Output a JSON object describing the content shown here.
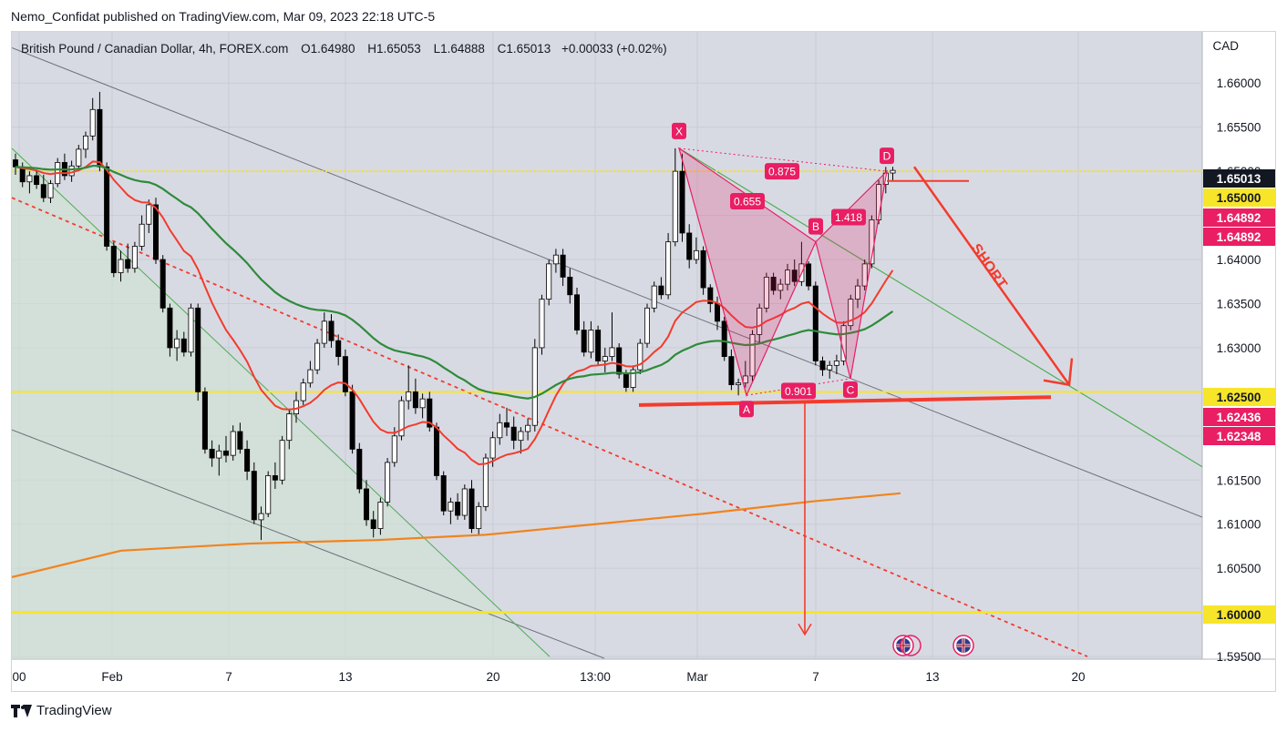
{
  "publisher": "Nemo_Confidat published on TradingView.com, Mar 09, 2023 22:18 UTC-5",
  "footer_brand": "TradingView",
  "symbol": {
    "name": "British Pound / Canadian Dollar, 4h, FOREX.com",
    "open_label": "O",
    "open": "1.64980",
    "high_label": "H",
    "high": "1.65053",
    "low_label": "L",
    "low": "1.64888",
    "close_label": "C",
    "close": "1.65013",
    "change": "+0.00033 (+0.02%)"
  },
  "currency": "CAD",
  "colors": {
    "up": "#ffffff",
    "down": "#000000",
    "ema_red": "#f23c2e",
    "ema_green": "#2e8b3a",
    "ema_orange": "#f0841e",
    "pattern": "#e91e63",
    "yellow": "#f7e52a",
    "trend_green": "#4caf50",
    "trend_gray": "#6b6f78",
    "plot_bg": "#d8dae3",
    "label_dark": "#131722"
  },
  "chart_data": {
    "type": "candlestick",
    "interval": "4h",
    "ylim": [
      1.5947,
      1.6658
    ],
    "y_ticks": [
      "1.59500",
      "1.60000",
      "1.60500",
      "1.61000",
      "1.61500",
      "1.62000",
      "1.62500",
      "1.63000",
      "1.63500",
      "1.64000",
      "1.64500",
      "1.65000",
      "1.65500",
      "1.66000"
    ],
    "x_ticks": [
      "00",
      "Feb",
      "7",
      "13",
      "20",
      "13:00",
      "Mar",
      "7",
      "13",
      "20"
    ],
    "price_labels": [
      {
        "text": "1.65013",
        "style": "dark"
      },
      {
        "text": "1.65000",
        "style": "yellow"
      },
      {
        "text": "1.64892",
        "style": "red"
      },
      {
        "text": "1.64892",
        "style": "red"
      },
      {
        "text": "1.62500",
        "style": "yellow"
      },
      {
        "text": "1.62436",
        "style": "red"
      },
      {
        "text": "1.62348",
        "style": "red"
      },
      {
        "text": "1.60000",
        "style": "yellow"
      }
    ],
    "horizontal_levels": [
      1.65,
      1.625,
      1.6
    ],
    "harmonic_pattern": {
      "points": [
        {
          "label": "X",
          "x": "Feb 28",
          "price": 1.6526
        },
        {
          "label": "A",
          "x": "Mar 3",
          "price": 1.6246
        },
        {
          "label": "B",
          "x": "Mar 7",
          "price": 1.642
        },
        {
          "label": "C",
          "x": "Mar 8",
          "price": 1.6265
        },
        {
          "label": "D",
          "x": "Mar 9",
          "price": 1.65
        }
      ],
      "ratios": [
        "0.875",
        "0.655",
        "1.418",
        "0.901"
      ]
    },
    "annotation": "SHORT",
    "candles": [
      [
        1.6513,
        1.652,
        1.6496,
        1.6505
      ],
      [
        1.6505,
        1.651,
        1.6482,
        1.6488
      ],
      [
        1.6488,
        1.65,
        1.6475,
        1.6495
      ],
      [
        1.6495,
        1.6502,
        1.648,
        1.6485
      ],
      [
        1.6485,
        1.6496,
        1.6465,
        1.647
      ],
      [
        1.647,
        1.649,
        1.6464,
        1.6486
      ],
      [
        1.6486,
        1.6515,
        1.6482,
        1.651
      ],
      [
        1.651,
        1.652,
        1.649,
        1.6495
      ],
      [
        1.6495,
        1.6512,
        1.6488,
        1.6506
      ],
      [
        1.6506,
        1.653,
        1.65,
        1.6525
      ],
      [
        1.6525,
        1.6545,
        1.6515,
        1.654
      ],
      [
        1.654,
        1.6583,
        1.6535,
        1.657
      ],
      [
        1.657,
        1.659,
        1.65,
        1.6505
      ],
      [
        1.6505,
        1.651,
        1.641,
        1.6415
      ],
      [
        1.6415,
        1.642,
        1.638,
        1.6385
      ],
      [
        1.6385,
        1.641,
        1.6375,
        1.64
      ],
      [
        1.64,
        1.6418,
        1.6385,
        1.639
      ],
      [
        1.639,
        1.642,
        1.6385,
        1.6415
      ],
      [
        1.6415,
        1.645,
        1.641,
        1.644
      ],
      [
        1.644,
        1.6468,
        1.643,
        1.6462
      ],
      [
        1.6462,
        1.647,
        1.6395,
        1.64
      ],
      [
        1.64,
        1.6405,
        1.634,
        1.6345
      ],
      [
        1.6345,
        1.635,
        1.629,
        1.63
      ],
      [
        1.63,
        1.632,
        1.6285,
        1.631
      ],
      [
        1.631,
        1.6318,
        1.629,
        1.6295
      ],
      [
        1.6295,
        1.635,
        1.629,
        1.6345
      ],
      [
        1.6345,
        1.635,
        1.624,
        1.625
      ],
      [
        1.625,
        1.6255,
        1.618,
        1.6185
      ],
      [
        1.6185,
        1.6195,
        1.6165,
        1.6175
      ],
      [
        1.6175,
        1.619,
        1.6155,
        1.6183
      ],
      [
        1.6183,
        1.62,
        1.617,
        1.6178
      ],
      [
        1.6178,
        1.6212,
        1.6172,
        1.6205
      ],
      [
        1.6205,
        1.6215,
        1.618,
        1.6185
      ],
      [
        1.6185,
        1.6195,
        1.615,
        1.616
      ],
      [
        1.616,
        1.617,
        1.61,
        1.6105
      ],
      [
        1.6105,
        1.612,
        1.6082,
        1.6112
      ],
      [
        1.6112,
        1.616,
        1.6108,
        1.6155
      ],
      [
        1.6155,
        1.617,
        1.614,
        1.615
      ],
      [
        1.615,
        1.62,
        1.6145,
        1.6195
      ],
      [
        1.6195,
        1.623,
        1.6185,
        1.6225
      ],
      [
        1.6225,
        1.625,
        1.6215,
        1.624
      ],
      [
        1.624,
        1.6265,
        1.6235,
        1.626
      ],
      [
        1.626,
        1.6285,
        1.6255,
        1.6275
      ],
      [
        1.6275,
        1.631,
        1.627,
        1.6305
      ],
      [
        1.6305,
        1.634,
        1.63,
        1.633
      ],
      [
        1.633,
        1.6338,
        1.63,
        1.6308
      ],
      [
        1.6308,
        1.6315,
        1.628,
        1.629
      ],
      [
        1.629,
        1.6298,
        1.6245,
        1.625
      ],
      [
        1.625,
        1.6258,
        1.618,
        1.6185
      ],
      [
        1.6185,
        1.6192,
        1.6135,
        1.614
      ],
      [
        1.614,
        1.615,
        1.6098,
        1.6105
      ],
      [
        1.6105,
        1.6115,
        1.6085,
        1.6095
      ],
      [
        1.6095,
        1.613,
        1.6088,
        1.6125
      ],
      [
        1.6125,
        1.6175,
        1.612,
        1.617
      ],
      [
        1.617,
        1.621,
        1.6165,
        1.62
      ],
      [
        1.62,
        1.6245,
        1.6195,
        1.624
      ],
      [
        1.624,
        1.628,
        1.623,
        1.625
      ],
      [
        1.625,
        1.6265,
        1.6225,
        1.6232
      ],
      [
        1.6232,
        1.6248,
        1.622,
        1.6242
      ],
      [
        1.6242,
        1.625,
        1.6205,
        1.621
      ],
      [
        1.621,
        1.6215,
        1.615,
        1.6155
      ],
      [
        1.6155,
        1.616,
        1.611,
        1.6115
      ],
      [
        1.6115,
        1.613,
        1.61,
        1.6125
      ],
      [
        1.6125,
        1.6135,
        1.6105,
        1.611
      ],
      [
        1.611,
        1.6145,
        1.6105,
        1.614
      ],
      [
        1.614,
        1.615,
        1.609,
        1.6095
      ],
      [
        1.6095,
        1.6125,
        1.6088,
        1.612
      ],
      [
        1.612,
        1.618,
        1.6115,
        1.6175
      ],
      [
        1.6175,
        1.6205,
        1.6165,
        1.6198
      ],
      [
        1.6198,
        1.6225,
        1.619,
        1.6215
      ],
      [
        1.6215,
        1.6232,
        1.62,
        1.621
      ],
      [
        1.621,
        1.6222,
        1.6185,
        1.6195
      ],
      [
        1.6195,
        1.621,
        1.618,
        1.6205
      ],
      [
        1.6205,
        1.622,
        1.6195,
        1.6212
      ],
      [
        1.6212,
        1.631,
        1.6205,
        1.63
      ],
      [
        1.63,
        1.636,
        1.6292,
        1.6355
      ],
      [
        1.6355,
        1.64,
        1.6348,
        1.6395
      ],
      [
        1.6395,
        1.6412,
        1.6385,
        1.6405
      ],
      [
        1.6405,
        1.6412,
        1.637,
        1.638
      ],
      [
        1.638,
        1.639,
        1.635,
        1.636
      ],
      [
        1.636,
        1.6368,
        1.6315,
        1.632
      ],
      [
        1.632,
        1.633,
        1.629,
        1.6295
      ],
      [
        1.6295,
        1.633,
        1.6288,
        1.632
      ],
      [
        1.632,
        1.6325,
        1.628,
        1.6285
      ],
      [
        1.6285,
        1.63,
        1.6272,
        1.629
      ],
      [
        1.629,
        1.634,
        1.6285,
        1.63
      ],
      [
        1.63,
        1.6305,
        1.6265,
        1.627
      ],
      [
        1.627,
        1.6275,
        1.625,
        1.6255
      ],
      [
        1.6255,
        1.628,
        1.625,
        1.6275
      ],
      [
        1.6275,
        1.631,
        1.627,
        1.6305
      ],
      [
        1.6305,
        1.635,
        1.63,
        1.6345
      ],
      [
        1.6345,
        1.6375,
        1.634,
        1.637
      ],
      [
        1.637,
        1.638,
        1.6355,
        1.636
      ],
      [
        1.636,
        1.643,
        1.6355,
        1.642
      ],
      [
        1.642,
        1.6526,
        1.6415,
        1.65
      ],
      [
        1.65,
        1.652,
        1.642,
        1.643
      ],
      [
        1.643,
        1.644,
        1.639,
        1.64
      ],
      [
        1.64,
        1.6425,
        1.6395,
        1.641
      ],
      [
        1.641,
        1.6415,
        1.636,
        1.6368
      ],
      [
        1.6368,
        1.6372,
        1.634,
        1.635
      ],
      [
        1.635,
        1.6358,
        1.632,
        1.633
      ],
      [
        1.633,
        1.6335,
        1.6285,
        1.629
      ],
      [
        1.629,
        1.6298,
        1.6252,
        1.6258
      ],
      [
        1.6258,
        1.6265,
        1.6246,
        1.626
      ],
      [
        1.626,
        1.6285,
        1.6255,
        1.6268
      ],
      [
        1.6268,
        1.632,
        1.6262,
        1.6315
      ],
      [
        1.6315,
        1.635,
        1.6305,
        1.6345
      ],
      [
        1.6345,
        1.6385,
        1.634,
        1.638
      ],
      [
        1.638,
        1.6385,
        1.636,
        1.6365
      ],
      [
        1.6365,
        1.6378,
        1.6355,
        1.6372
      ],
      [
        1.6372,
        1.6395,
        1.6365,
        1.6388
      ],
      [
        1.6388,
        1.64,
        1.637,
        1.6375
      ],
      [
        1.6375,
        1.642,
        1.637,
        1.6395
      ],
      [
        1.6395,
        1.6398,
        1.6365,
        1.637
      ],
      [
        1.637,
        1.6375,
        1.628,
        1.6285
      ],
      [
        1.6285,
        1.629,
        1.6268,
        1.6275
      ],
      [
        1.6275,
        1.6285,
        1.6265,
        1.628
      ],
      [
        1.628,
        1.6292,
        1.627,
        1.6285
      ],
      [
        1.6285,
        1.633,
        1.628,
        1.6325
      ],
      [
        1.6325,
        1.636,
        1.632,
        1.6355
      ],
      [
        1.6355,
        1.6378,
        1.6345,
        1.637
      ],
      [
        1.637,
        1.64,
        1.6365,
        1.6395
      ],
      [
        1.6395,
        1.645,
        1.639,
        1.6445
      ],
      [
        1.6445,
        1.649,
        1.644,
        1.6485
      ],
      [
        1.6485,
        1.6505,
        1.6475,
        1.6498
      ],
      [
        1.6498,
        1.6505,
        1.6489,
        1.6501
      ]
    ]
  }
}
